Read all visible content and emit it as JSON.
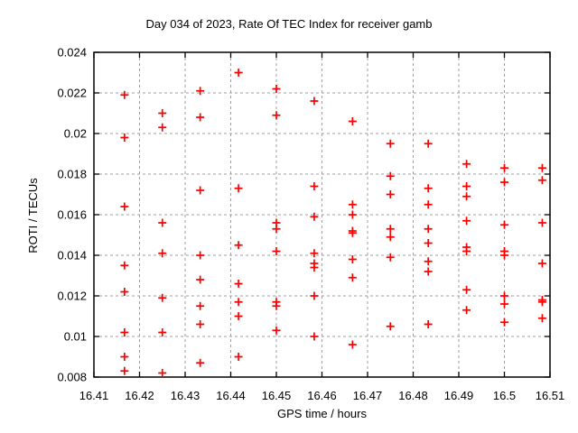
{
  "chart_data": {
    "type": "scatter",
    "title": "Day 034 of 2023, Rate Of TEC Index for receiver gamb",
    "xlabel": "GPS time / hours",
    "ylabel": "ROTI / TECUs",
    "xlim": [
      16.41,
      16.51
    ],
    "ylim": [
      0.008,
      0.024
    ],
    "xtick_values": [
      16.41,
      16.42,
      16.43,
      16.44,
      16.45,
      16.46,
      16.47,
      16.48,
      16.49,
      16.5,
      16.51
    ],
    "xtick_labels": [
      "16.41",
      "16.42",
      "16.43",
      "16.44",
      "16.45",
      "16.46",
      "16.47",
      "16.48",
      "16.49",
      "16.5",
      "16.51"
    ],
    "ytick_values": [
      0.008,
      0.01,
      0.012,
      0.014,
      0.016,
      0.018,
      0.02,
      0.022,
      0.024
    ],
    "ytick_labels": [
      "0.008",
      "0.01",
      "0.012",
      "0.014",
      "0.016",
      "0.018",
      "0.02",
      "0.022",
      "0.024"
    ],
    "grid": true,
    "legend": false,
    "marker": {
      "shape": "plus",
      "color": "#ff0000",
      "size": 9
    },
    "colors": {
      "background": "#ffffff",
      "border": "#000000",
      "grid": "#9f9f9f",
      "text": "#000000"
    },
    "series": [
      {
        "name": "ROTI",
        "points": [
          [
            16.4167,
            0.0219
          ],
          [
            16.4167,
            0.0198
          ],
          [
            16.4167,
            0.0164
          ],
          [
            16.4167,
            0.0135
          ],
          [
            16.4167,
            0.0122
          ],
          [
            16.4167,
            0.0102
          ],
          [
            16.4167,
            0.009
          ],
          [
            16.4167,
            0.0083
          ],
          [
            16.425,
            0.021
          ],
          [
            16.425,
            0.0203
          ],
          [
            16.425,
            0.0156
          ],
          [
            16.425,
            0.0141
          ],
          [
            16.425,
            0.0119
          ],
          [
            16.425,
            0.0102
          ],
          [
            16.425,
            0.0082
          ],
          [
            16.4333,
            0.0221
          ],
          [
            16.4333,
            0.0208
          ],
          [
            16.4333,
            0.0172
          ],
          [
            16.4333,
            0.014
          ],
          [
            16.4333,
            0.0128
          ],
          [
            16.4333,
            0.0115
          ],
          [
            16.4333,
            0.0106
          ],
          [
            16.4333,
            0.0087
          ],
          [
            16.4417,
            0.023
          ],
          [
            16.4417,
            0.0173
          ],
          [
            16.4417,
            0.0145
          ],
          [
            16.4417,
            0.0126
          ],
          [
            16.4417,
            0.0117
          ],
          [
            16.4417,
            0.011
          ],
          [
            16.4417,
            0.009
          ],
          [
            16.45,
            0.0222
          ],
          [
            16.45,
            0.0209
          ],
          [
            16.45,
            0.0156
          ],
          [
            16.45,
            0.0153
          ],
          [
            16.45,
            0.0142
          ],
          [
            16.45,
            0.0117
          ],
          [
            16.45,
            0.0115
          ],
          [
            16.45,
            0.0103
          ],
          [
            16.4583,
            0.0216
          ],
          [
            16.4583,
            0.0174
          ],
          [
            16.4583,
            0.0159
          ],
          [
            16.4583,
            0.0141
          ],
          [
            16.4583,
            0.0136
          ],
          [
            16.4583,
            0.0134
          ],
          [
            16.4583,
            0.012
          ],
          [
            16.4583,
            0.01
          ],
          [
            16.4667,
            0.0206
          ],
          [
            16.4667,
            0.0165
          ],
          [
            16.4667,
            0.016
          ],
          [
            16.4667,
            0.0152
          ],
          [
            16.4667,
            0.0151
          ],
          [
            16.4667,
            0.0138
          ],
          [
            16.4667,
            0.0129
          ],
          [
            16.4667,
            0.0096
          ],
          [
            16.475,
            0.0195
          ],
          [
            16.475,
            0.0179
          ],
          [
            16.475,
            0.017
          ],
          [
            16.475,
            0.0153
          ],
          [
            16.475,
            0.0149
          ],
          [
            16.475,
            0.0139
          ],
          [
            16.475,
            0.0105
          ],
          [
            16.4833,
            0.0195
          ],
          [
            16.4833,
            0.0173
          ],
          [
            16.4833,
            0.0165
          ],
          [
            16.4833,
            0.0153
          ],
          [
            16.4833,
            0.0146
          ],
          [
            16.4833,
            0.0137
          ],
          [
            16.4833,
            0.0132
          ],
          [
            16.4833,
            0.0106
          ],
          [
            16.4917,
            0.0185
          ],
          [
            16.4917,
            0.0174
          ],
          [
            16.4917,
            0.0169
          ],
          [
            16.4917,
            0.0157
          ],
          [
            16.4917,
            0.0144
          ],
          [
            16.4917,
            0.0142
          ],
          [
            16.4917,
            0.0123
          ],
          [
            16.4917,
            0.0113
          ],
          [
            16.5,
            0.0183
          ],
          [
            16.5,
            0.0176
          ],
          [
            16.5,
            0.0155
          ],
          [
            16.5,
            0.0142
          ],
          [
            16.5,
            0.014
          ],
          [
            16.5,
            0.012
          ],
          [
            16.5,
            0.0116
          ],
          [
            16.5,
            0.0107
          ],
          [
            16.5083,
            0.0183
          ],
          [
            16.5083,
            0.0177
          ],
          [
            16.5083,
            0.0156
          ],
          [
            16.5083,
            0.0136
          ],
          [
            16.5083,
            0.0118
          ],
          [
            16.5083,
            0.0117
          ],
          [
            16.5083,
            0.0109
          ]
        ]
      }
    ]
  }
}
